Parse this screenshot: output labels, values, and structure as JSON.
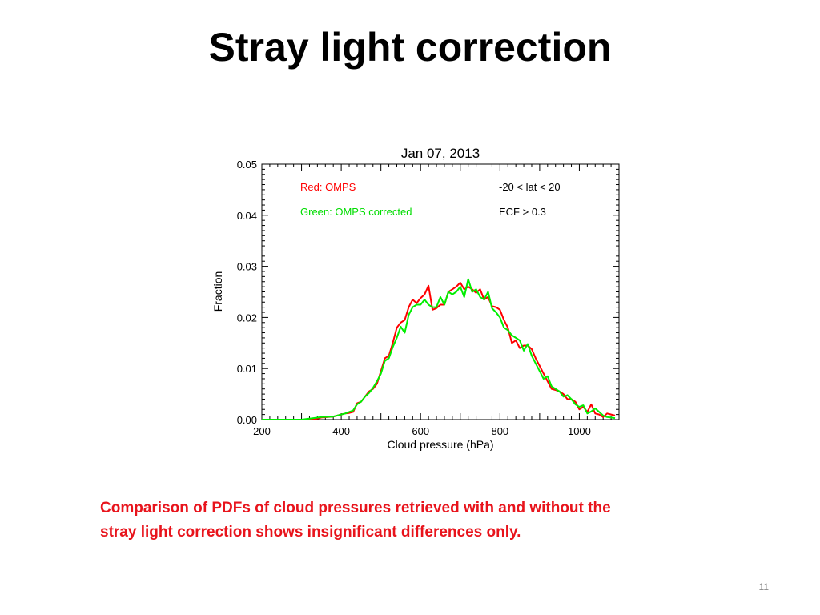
{
  "slide": {
    "title": "Stray light correction",
    "caption": "Comparison of PDFs of cloud pressures retrieved with and without the stray light correction shows insignificant differences only.",
    "page_number": "11"
  },
  "chart_data": {
    "type": "line",
    "title": "Jan 07, 2013",
    "xlabel": "Cloud pressure (hPa)",
    "ylabel": "Fraction",
    "xlim": [
      200,
      1100
    ],
    "ylim": [
      0,
      0.05
    ],
    "xticks": [
      200,
      400,
      600,
      800,
      1000
    ],
    "yticks": [
      "0.00",
      "0.01",
      "0.02",
      "0.03",
      "0.04",
      "0.05"
    ],
    "annotations": [
      "-20 < lat < 20",
      "ECF > 0.3"
    ],
    "series": [
      {
        "name": "Red: OMPS",
        "color": "#ff0000",
        "x": [
          200,
          250,
          300,
          330,
          350,
          380,
          400,
          410,
          420,
          430,
          440,
          450,
          460,
          470,
          480,
          490,
          500,
          510,
          520,
          530,
          540,
          550,
          560,
          570,
          580,
          590,
          600,
          610,
          620,
          630,
          640,
          650,
          660,
          670,
          680,
          690,
          700,
          710,
          720,
          730,
          740,
          750,
          760,
          770,
          780,
          790,
          800,
          810,
          820,
          830,
          840,
          850,
          860,
          870,
          880,
          890,
          900,
          910,
          920,
          930,
          940,
          950,
          960,
          970,
          980,
          990,
          1000,
          1010,
          1020,
          1030,
          1040,
          1050,
          1060,
          1070,
          1080,
          1090
        ],
        "values": [
          0.0,
          0.0,
          0.0,
          0.0,
          0.0004,
          0.0006,
          0.001,
          0.0012,
          0.0013,
          0.0015,
          0.0032,
          0.0035,
          0.0045,
          0.0055,
          0.006,
          0.007,
          0.0095,
          0.012,
          0.0125,
          0.015,
          0.018,
          0.019,
          0.0195,
          0.022,
          0.0235,
          0.0228,
          0.0238,
          0.0245,
          0.0262,
          0.0215,
          0.0218,
          0.0225,
          0.0225,
          0.025,
          0.0255,
          0.026,
          0.0268,
          0.0255,
          0.026,
          0.0255,
          0.0248,
          0.0255,
          0.0235,
          0.024,
          0.0222,
          0.022,
          0.0215,
          0.0195,
          0.018,
          0.015,
          0.0155,
          0.014,
          0.0145,
          0.0145,
          0.0138,
          0.012,
          0.0105,
          0.009,
          0.0075,
          0.006,
          0.0058,
          0.0055,
          0.005,
          0.004,
          0.004,
          0.0035,
          0.002,
          0.0025,
          0.0015,
          0.003,
          0.0012,
          0.001,
          0.0005,
          0.0012,
          0.001,
          0.0008
        ]
      },
      {
        "name": "Green: OMPS corrected",
        "color": "#00ee00",
        "x": [
          200,
          250,
          300,
          330,
          350,
          380,
          400,
          410,
          420,
          430,
          440,
          450,
          460,
          470,
          480,
          490,
          500,
          510,
          520,
          530,
          540,
          550,
          560,
          570,
          580,
          590,
          600,
          610,
          620,
          630,
          640,
          650,
          660,
          670,
          680,
          690,
          700,
          710,
          720,
          730,
          740,
          750,
          760,
          770,
          780,
          790,
          800,
          810,
          820,
          830,
          840,
          850,
          860,
          870,
          880,
          890,
          900,
          910,
          920,
          930,
          940,
          950,
          960,
          970,
          980,
          990,
          1000,
          1010,
          1020,
          1030,
          1040,
          1050,
          1060,
          1070,
          1080,
          1090
        ],
        "values": [
          0.0,
          0.0,
          0.0,
          0.0003,
          0.0005,
          0.0006,
          0.001,
          0.0012,
          0.0015,
          0.0018,
          0.003,
          0.0035,
          0.0045,
          0.0052,
          0.0062,
          0.0075,
          0.009,
          0.0115,
          0.012,
          0.0142,
          0.016,
          0.0182,
          0.017,
          0.0205,
          0.022,
          0.0225,
          0.0225,
          0.0235,
          0.0225,
          0.022,
          0.022,
          0.024,
          0.0225,
          0.025,
          0.0245,
          0.025,
          0.026,
          0.024,
          0.0275,
          0.025,
          0.0255,
          0.024,
          0.0235,
          0.025,
          0.0218,
          0.021,
          0.02,
          0.018,
          0.0175,
          0.0165,
          0.016,
          0.0155,
          0.0135,
          0.0148,
          0.0125,
          0.011,
          0.0095,
          0.008,
          0.0085,
          0.0065,
          0.006,
          0.0055,
          0.0045,
          0.0048,
          0.004,
          0.003,
          0.0025,
          0.0028,
          0.0012,
          0.0016,
          0.0022,
          0.0015,
          0.0008,
          0.0005,
          0.0004,
          0.0003
        ]
      }
    ]
  }
}
